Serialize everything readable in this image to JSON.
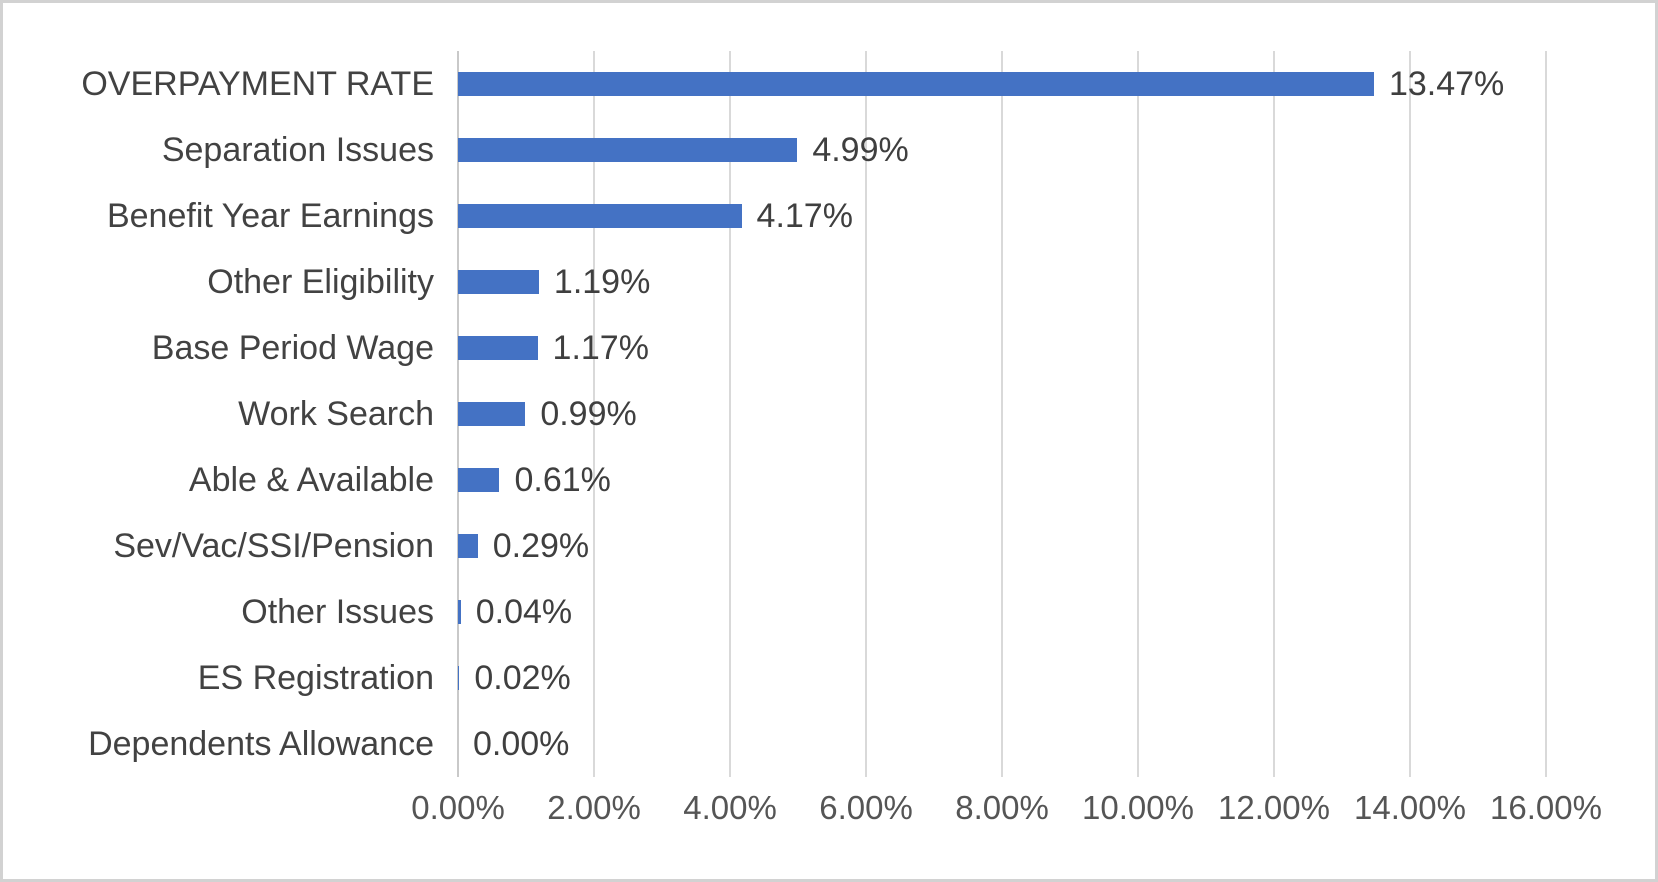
{
  "chart_data": {
    "type": "bar",
    "orientation": "horizontal",
    "title": "",
    "xlabel": "",
    "ylabel": "",
    "categories": [
      "OVERPAYMENT RATE",
      "Separation Issues",
      "Benefit Year Earnings",
      "Other Eligibility",
      "Base Period Wage",
      "Work Search",
      "Able & Available",
      "Sev/Vac/SSI/Pension",
      "Other Issues",
      "ES Registration",
      "Dependents Allowance"
    ],
    "values": [
      13.47,
      4.99,
      4.17,
      1.19,
      1.17,
      0.99,
      0.61,
      0.29,
      0.04,
      0.02,
      0.0
    ],
    "value_labels": [
      "13.47%",
      "4.99%",
      "4.17%",
      "1.19%",
      "1.17%",
      "0.99%",
      "0.61%",
      "0.29%",
      "0.04%",
      "0.02%",
      "0.00%"
    ],
    "xlim": [
      0,
      16
    ],
    "x_tick_labels": [
      "0.00%",
      "2.00%",
      "4.00%",
      "6.00%",
      "8.00%",
      "10.00%",
      "12.00%",
      "14.00%",
      "16.00%"
    ],
    "grid": "vertical-only",
    "legend": "none",
    "colors": {
      "bar": "#4472c4",
      "category_text": "#424242",
      "value_text": "#3f3f3f",
      "tick_text": "#555555",
      "gridline": "#d9d9d9",
      "axis_line": "#c9c9c9",
      "frame_border": "#d2d2d2",
      "background": "#ffffff"
    }
  }
}
